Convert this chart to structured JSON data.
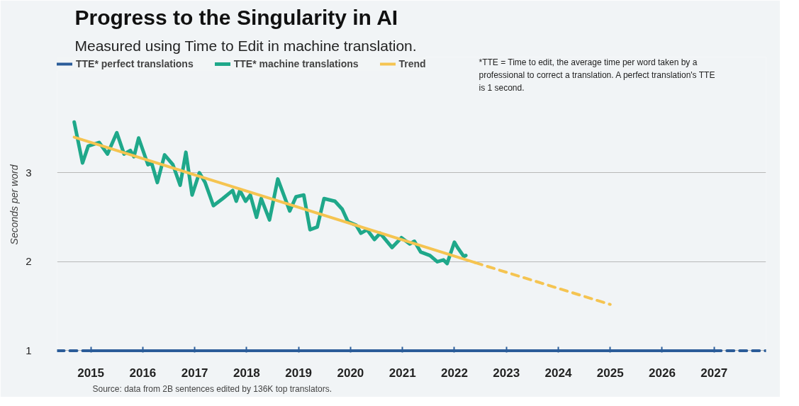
{
  "chart_data": {
    "type": "line",
    "title": "Progress to the Singularity in AI",
    "subtitle": "Measured using Time to Edit in machine translation.",
    "ylabel": "Seconds per word",
    "xlim": [
      2014.35,
      2028.0
    ],
    "xticks": [
      2015,
      2016,
      2017,
      2018,
      2019,
      2020,
      2021,
      2022,
      2023,
      2024,
      2025,
      2026,
      2027
    ],
    "ylim": [
      0.98,
      4.3
    ],
    "yticks": [
      1,
      2,
      3
    ],
    "grid": "y",
    "legend": "top left",
    "annotations": [
      "*TTE = Time to edit, the average time per word taken by a professional to correct a translation. A perfect translation's TTE is 1 second.",
      "Source: data from 2B sentences edited by 136K top translators."
    ],
    "series": [
      {
        "name": "TTE* perfect translations",
        "color": "#2b5c99",
        "x": [
          2015,
          2027
        ],
        "values": [
          1,
          1
        ]
      },
      {
        "color": "#2b5c99",
        "line_style": "dashed",
        "x": [
          2014.35,
          2015,
          2021,
          2027,
          2028.0
        ],
        "values": [
          1,
          1,
          null,
          1,
          1
        ]
      },
      {
        "name": "TTE* machine translations",
        "color": "#1fa88a",
        "x": [
          2014.68,
          2014.84,
          2014.95,
          2015.16,
          2015.32,
          2015.5,
          2015.64,
          2015.76,
          2015.83,
          2015.92,
          2016.1,
          2016.17,
          2016.28,
          2016.42,
          2016.58,
          2016.72,
          2016.83,
          2016.95,
          2017.09,
          2017.2,
          2017.36,
          2017.54,
          2017.73,
          2017.8,
          2017.87,
          2017.98,
          2018.07,
          2018.19,
          2018.28,
          2018.44,
          2018.6,
          2018.83,
          2018.95,
          2019.1,
          2019.22,
          2019.36,
          2019.49,
          2019.7,
          2019.84,
          2019.95,
          2020.11,
          2020.2,
          2020.32,
          2020.46,
          2020.57,
          2020.8,
          2020.98,
          2021.14,
          2021.23,
          2021.35,
          2021.53,
          2021.67,
          2021.79,
          2021.86,
          2022.0,
          2022.06,
          2022.18,
          2022.22
        ],
        "values": [
          3.57,
          3.11,
          3.3,
          3.34,
          3.21,
          3.45,
          3.21,
          3.25,
          3.18,
          3.39,
          3.09,
          3.11,
          2.89,
          3.2,
          3.09,
          2.86,
          3.23,
          2.75,
          3.0,
          2.89,
          2.63,
          2.71,
          2.8,
          2.68,
          2.8,
          2.68,
          2.75,
          2.5,
          2.71,
          2.47,
          2.93,
          2.57,
          2.73,
          2.75,
          2.36,
          2.39,
          2.71,
          2.68,
          2.59,
          2.45,
          2.41,
          2.32,
          2.36,
          2.25,
          2.32,
          2.16,
          2.27,
          2.2,
          2.23,
          2.11,
          2.07,
          2.0,
          2.02,
          1.98,
          2.22,
          2.16,
          2.06,
          2.07
        ]
      },
      {
        "name": "Trend",
        "color": "#f5c451",
        "x": [
          2014.68,
          2022.4
        ],
        "values": [
          3.4,
          1.99
        ]
      },
      {
        "color": "#f5c451",
        "line_style": "dashed",
        "x": [
          2022.4,
          2025.0
        ],
        "values": [
          1.99,
          1.52
        ]
      }
    ]
  }
}
